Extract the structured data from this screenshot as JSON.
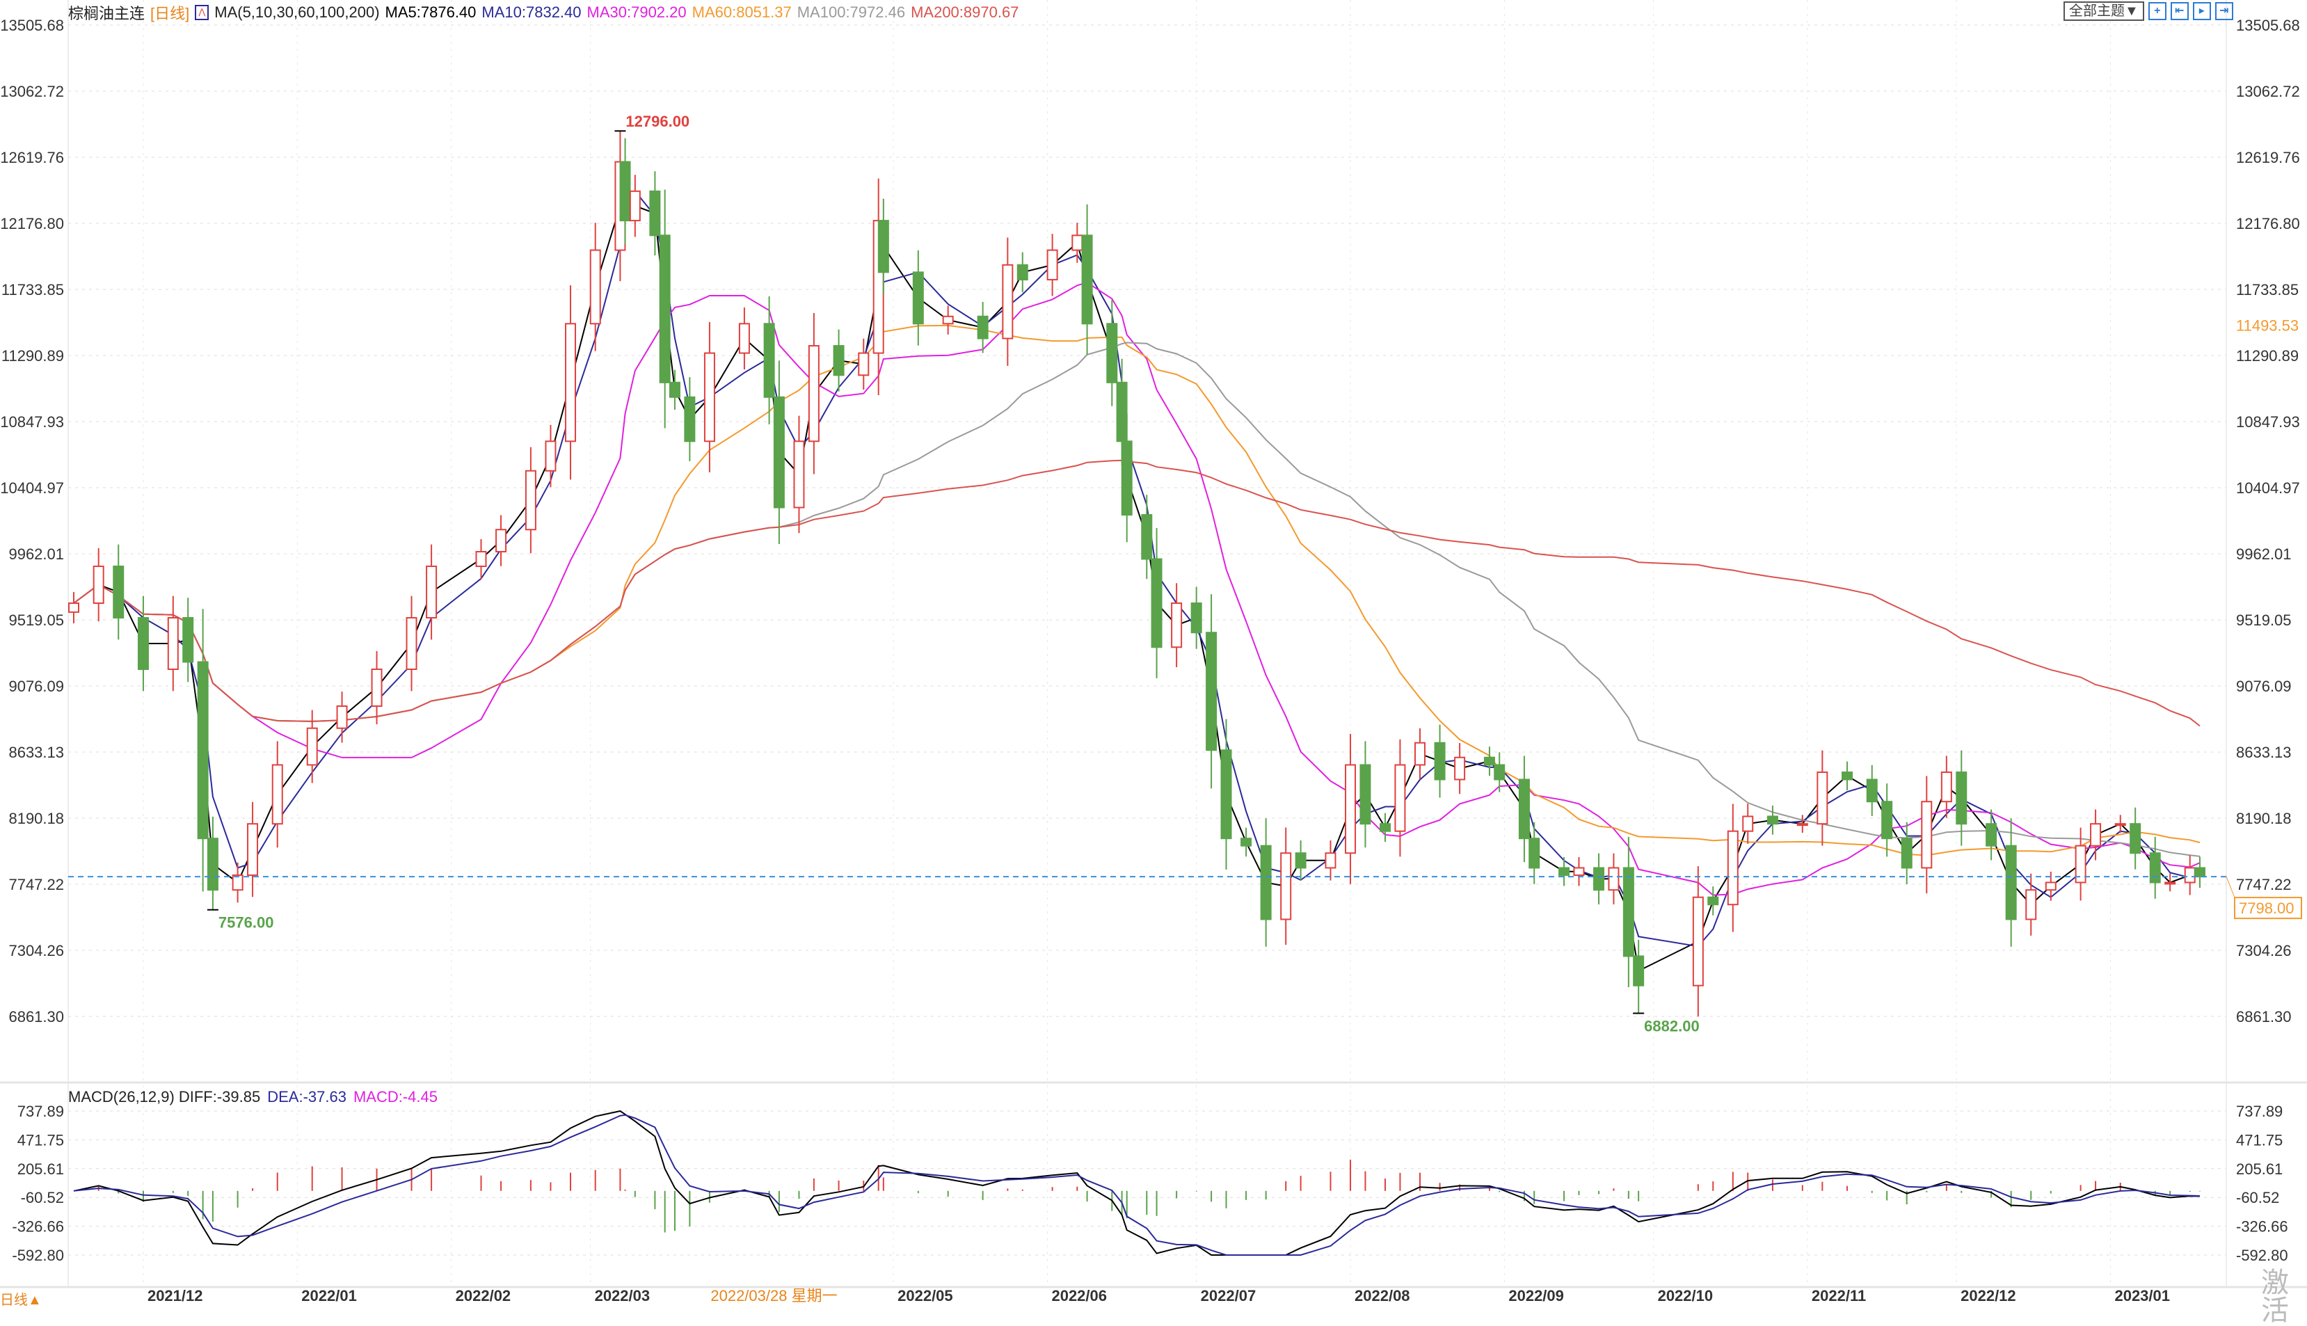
{
  "header": {
    "symbol": "棕榈油主连",
    "period": "[日线]",
    "ma_params": "MA(5,10,30,60,100,200)",
    "ma5": "MA5:7876.40",
    "ma10": "MA10:7832.40",
    "ma30": "MA30:7902.20",
    "ma60": "MA60:8051.37",
    "ma100": "MA100:7972.46",
    "ma200": "MA200:8970.67"
  },
  "toolbar": {
    "theme_label": "全部主题▼",
    "icons": [
      "crosshair-icon",
      "shrink-left-icon",
      "expand-right-icon",
      "jump-to-end-icon"
    ]
  },
  "macd_header": {
    "params": "MACD(26,12,9)",
    "diff": "DIFF:-39.85",
    "dea": "DEA:-37.63",
    "macd": "MACD:-4.45"
  },
  "footer": {
    "period_tab": "日线▲",
    "cursor_date": "2022/03/28 星期一",
    "watermark": "激活"
  },
  "colors": {
    "up": "#e0413e",
    "down": "#5aa34b",
    "ma5": "#000000",
    "ma10": "#2a2a9a",
    "ma30": "#e020e0",
    "ma60": "#f39a2e",
    "ma100": "#9a9a9a",
    "ma200": "#d9534f",
    "current_line": "#3a8fd9",
    "current_label": "#f39a2e"
  },
  "chart_data": {
    "type": "candlestick",
    "price_ticks": [
      "13505.68",
      "13062.72",
      "12619.76",
      "12176.80",
      "11733.85",
      "11290.89",
      "10847.93",
      "10404.97",
      "9962.01",
      "9519.05",
      "9076.09",
      "8633.13",
      "8190.18",
      "7747.22",
      "7304.26",
      "6861.30"
    ],
    "price_range": [
      6861.3,
      13505.68
    ],
    "macd_ticks": [
      "737.89",
      "471.75",
      "205.61",
      "-60.52",
      "-326.66",
      "-592.80"
    ],
    "macd_range": [
      -592.8,
      737.89
    ],
    "x_ticks": [
      {
        "label": "2021/12",
        "date": "2021-12-01"
      },
      {
        "label": "2022/01",
        "date": "2022-01-01"
      },
      {
        "label": "2022/02",
        "date": "2022-02-01"
      },
      {
        "label": "2022/03",
        "date": "2022-03-01"
      },
      {
        "label": "2022/05",
        "date": "2022-05-01"
      },
      {
        "label": "2022/06",
        "date": "2022-06-01"
      },
      {
        "label": "2022/07",
        "date": "2022-07-01"
      },
      {
        "label": "2022/08",
        "date": "2022-08-01"
      },
      {
        "label": "2022/09",
        "date": "2022-09-01"
      },
      {
        "label": "2022/10",
        "date": "2022-10-01"
      },
      {
        "label": "2022/11",
        "date": "2022-11-01"
      },
      {
        "label": "2022/12",
        "date": "2022-12-01"
      },
      {
        "label": "2023/01",
        "date": "2023-01-01"
      }
    ],
    "cursor_date": "2022-03-28",
    "current_price": "7798.00",
    "ma60_marker": "11493.53",
    "extremes": [
      {
        "label": "12796.00",
        "date": "2022-03-07",
        "value": 12796,
        "kind": "high"
      },
      {
        "label": "7576.00",
        "date": "2021-12-15",
        "value": 7576,
        "kind": "low"
      },
      {
        "label": "6882.00",
        "date": "2022-09-28",
        "value": 6882,
        "kind": "low"
      }
    ],
    "dates": [
      "2021-11-17",
      "2021-11-22",
      "2021-11-26",
      "2021-12-01",
      "2021-12-07",
      "2021-12-10",
      "2021-12-13",
      "2021-12-15",
      "2021-12-20",
      "2021-12-23",
      "2021-12-28",
      "2022-01-04",
      "2022-01-10",
      "2022-01-17",
      "2022-01-24",
      "2022-01-28",
      "2022-02-07",
      "2022-02-11",
      "2022-02-17",
      "2022-02-21",
      "2022-02-25",
      "2022-03-02",
      "2022-03-07",
      "2022-03-08",
      "2022-03-10",
      "2022-03-14",
      "2022-03-16",
      "2022-03-18",
      "2022-03-21",
      "2022-03-25",
      "2022-04-01",
      "2022-04-06",
      "2022-04-08",
      "2022-04-12",
      "2022-04-15",
      "2022-04-20",
      "2022-04-25",
      "2022-04-28",
      "2022-04-29",
      "2022-05-06",
      "2022-05-12",
      "2022-05-19",
      "2022-05-24",
      "2022-05-27",
      "2022-06-02",
      "2022-06-07",
      "2022-06-09",
      "2022-06-14",
      "2022-06-16",
      "2022-06-17",
      "2022-06-21",
      "2022-06-23",
      "2022-06-27",
      "2022-07-01",
      "2022-07-04",
      "2022-07-07",
      "2022-07-11",
      "2022-07-15",
      "2022-07-19",
      "2022-07-22",
      "2022-07-28",
      "2022-08-01",
      "2022-08-04",
      "2022-08-08",
      "2022-08-11",
      "2022-08-15",
      "2022-08-19",
      "2022-08-23",
      "2022-08-29",
      "2022-08-31",
      "2022-09-05",
      "2022-09-07",
      "2022-09-13",
      "2022-09-16",
      "2022-09-20",
      "2022-09-23",
      "2022-09-26",
      "2022-09-28",
      "2022-10-10",
      "2022-10-13",
      "2022-10-17",
      "2022-10-20",
      "2022-10-25",
      "2022-10-31",
      "2022-11-04",
      "2022-11-09",
      "2022-11-14",
      "2022-11-17",
      "2022-11-21",
      "2022-11-25",
      "2022-11-29",
      "2022-12-02",
      "2022-12-08",
      "2022-12-12",
      "2022-12-16",
      "2022-12-20",
      "2022-12-26",
      "2022-12-29",
      "2023-01-03",
      "2023-01-06",
      "2023-01-10",
      "2023-01-13",
      "2023-01-17",
      "2023-01-19"
    ],
    "close": [
      9631,
      9878,
      9533,
      9188,
      9533,
      9237,
      8054,
      7709,
      7808,
      8152,
      8547,
      8793,
      8941,
      9188,
      9533,
      9878,
      9976,
      10124,
      10518,
      10716,
      11504,
      11997,
      12589,
      12195,
      12392,
      12096,
      11110,
      11012,
      10716,
      11307,
      11504,
      11012,
      10272,
      10716,
      11356,
      11159,
      11307,
      12195,
      11849,
      11504,
      11553,
      11405,
      11898,
      11799,
      11997,
      12096,
      11504,
      11110,
      10716,
      10223,
      9927,
      9336,
      9631,
      9434,
      8646,
      8054,
      8005,
      7512,
      7956,
      7857,
      7956,
      8547,
      8152,
      8103,
      8547,
      8695,
      8449,
      8597,
      8547,
      8449,
      8054,
      7857,
      7808,
      7857,
      7709,
      7857,
      7265,
      7068,
      7660,
      7611,
      8103,
      8202,
      8152,
      8152,
      8498,
      8449,
      8301,
      8054,
      7857,
      8301,
      8498,
      8152,
      8005,
      7512,
      7709,
      7759,
      8005,
      8152,
      8152,
      7956,
      7759,
      7759,
      7857,
      7798
    ]
  }
}
